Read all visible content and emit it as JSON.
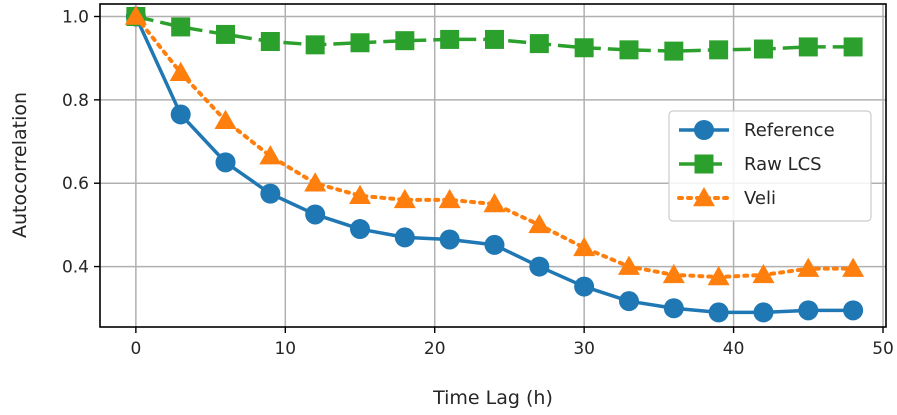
{
  "chart_data": {
    "type": "line",
    "title": "",
    "xlabel": "Time Lag (h)",
    "ylabel": "Autocorrelation",
    "xlim": [
      -2.4,
      50.2
    ],
    "ylim": [
      0.255,
      1.03
    ],
    "xticks": [
      0,
      10,
      20,
      30,
      40,
      50
    ],
    "yticks": [
      0.4,
      0.6,
      0.8,
      1.0
    ],
    "xtick_labels": [
      "0",
      "10",
      "20",
      "30",
      "40",
      "50"
    ],
    "ytick_labels": [
      "0.4",
      "0.6",
      "0.8",
      "1.0"
    ],
    "grid": true,
    "legend_position": "center-right",
    "x": [
      0,
      3,
      6,
      9,
      12,
      15,
      18,
      21,
      24,
      27,
      30,
      33,
      36,
      39,
      42,
      45,
      48
    ],
    "series": [
      {
        "name": "Reference",
        "color": "#1f77b4",
        "line_style": "solid",
        "marker": "circle",
        "values": [
          1.0,
          0.765,
          0.65,
          0.575,
          0.525,
          0.49,
          0.47,
          0.465,
          0.452,
          0.4,
          0.352,
          0.317,
          0.3,
          0.29,
          0.29,
          0.295,
          0.295
        ]
      },
      {
        "name": "Raw LCS",
        "color": "#2ca02c",
        "line_style": "dashed",
        "marker": "square",
        "values": [
          1.0,
          0.975,
          0.957,
          0.94,
          0.932,
          0.937,
          0.942,
          0.945,
          0.945,
          0.935,
          0.925,
          0.92,
          0.917,
          0.92,
          0.922,
          0.927,
          0.927
        ]
      },
      {
        "name": "Veli",
        "color": "#ff7f0e",
        "line_style": "dotted",
        "marker": "triangle",
        "values": [
          1.0,
          0.865,
          0.75,
          0.665,
          0.6,
          0.57,
          0.56,
          0.56,
          0.55,
          0.5,
          0.445,
          0.4,
          0.38,
          0.375,
          0.38,
          0.395,
          0.395
        ]
      }
    ]
  }
}
